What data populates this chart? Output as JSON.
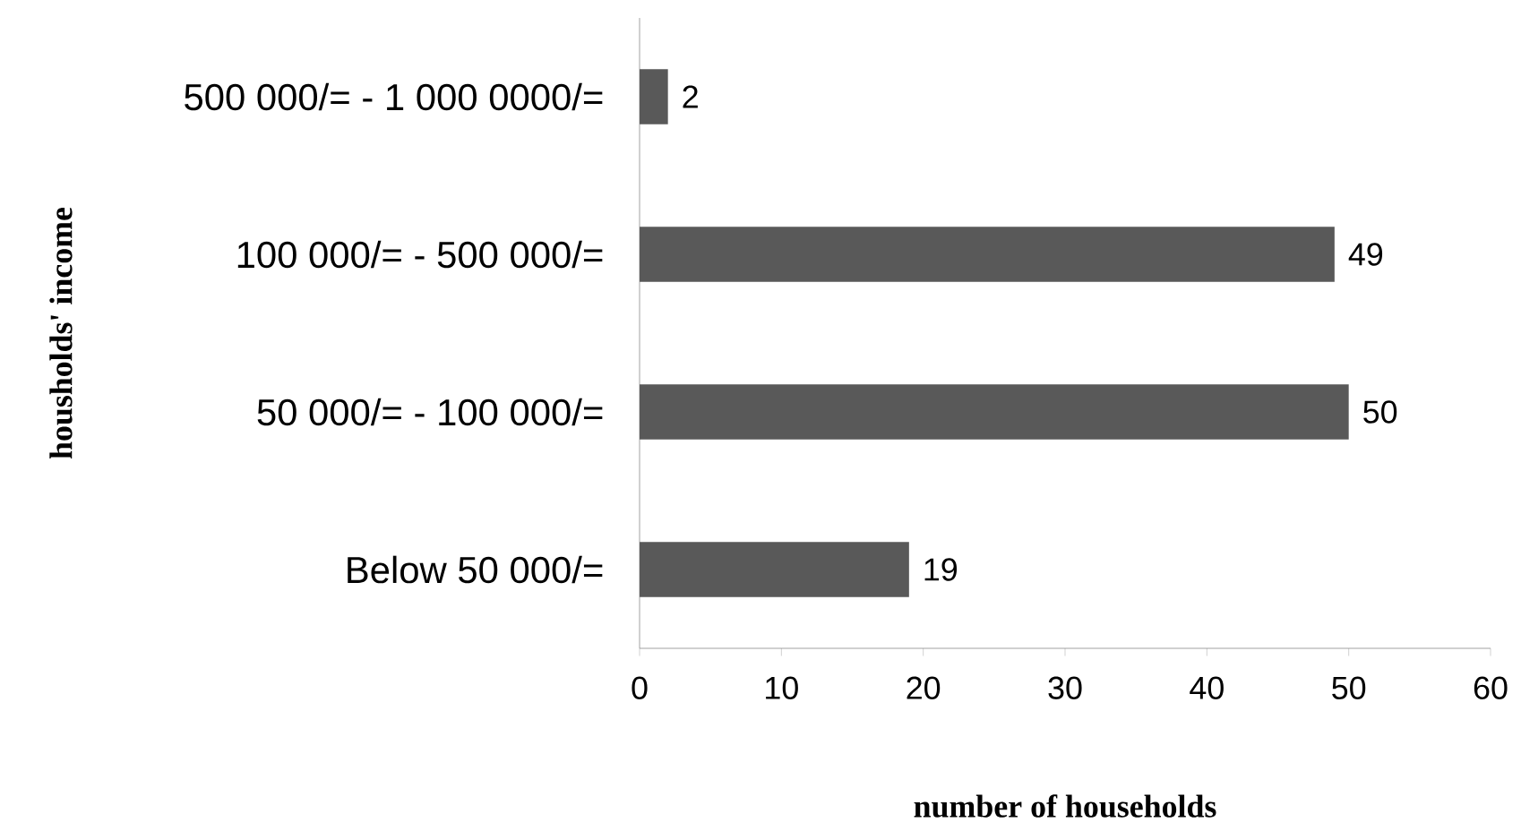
{
  "chart_data": {
    "type": "bar",
    "orientation": "horizontal",
    "xlabel": "number of households",
    "ylabel": "housholds' income",
    "categories": [
      "500 000/= - 1 000 0000/=",
      "100 000/= - 500 000/=",
      "50 000/= - 100 000/=",
      "Below 50 000/="
    ],
    "values": [
      2,
      49,
      50,
      19
    ],
    "color": "#595959",
    "xlim": [
      0,
      60
    ],
    "xticks": [
      0,
      10,
      20,
      30,
      40,
      50,
      60
    ],
    "data_labels": true,
    "grid": false
  }
}
